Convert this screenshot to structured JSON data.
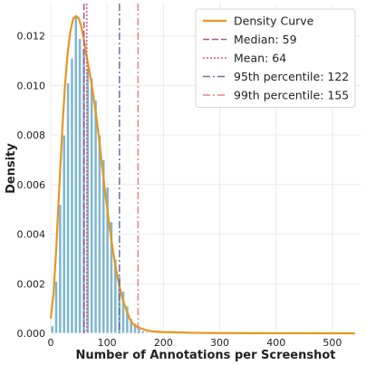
{
  "chart_data": {
    "type": "bar",
    "title": "",
    "xlabel": "Number of Annotations per Screenshot",
    "ylabel": "Density",
    "xlim": [
      0,
      550
    ],
    "ylim": [
      0,
      0.0133
    ],
    "x_ticks": [
      0,
      100,
      200,
      300,
      400,
      500
    ],
    "y_ticks": [
      0.0,
      0.002,
      0.004,
      0.006,
      0.008,
      0.01,
      0.012
    ],
    "y_tick_labels": [
      "0.000",
      "0.002",
      "0.004",
      "0.006",
      "0.008",
      "0.010",
      "0.012"
    ],
    "grid": true,
    "legend_position": "top-right",
    "histogram": {
      "name": "",
      "color": "#7fb7d1",
      "bin_width": 7,
      "bins": [
        {
          "x0": 0,
          "value": 0.0003
        },
        {
          "x0": 7,
          "value": 0.0021
        },
        {
          "x0": 14,
          "value": 0.0052
        },
        {
          "x0": 21,
          "value": 0.008
        },
        {
          "x0": 28,
          "value": 0.0101
        },
        {
          "x0": 35,
          "value": 0.0111
        },
        {
          "x0": 42,
          "value": 0.0128
        },
        {
          "x0": 49,
          "value": 0.0119
        },
        {
          "x0": 56,
          "value": 0.0115
        },
        {
          "x0": 63,
          "value": 0.0107
        },
        {
          "x0": 70,
          "value": 0.0103
        },
        {
          "x0": 77,
          "value": 0.0094
        },
        {
          "x0": 84,
          "value": 0.008
        },
        {
          "x0": 91,
          "value": 0.007
        },
        {
          "x0": 98,
          "value": 0.0059
        },
        {
          "x0": 105,
          "value": 0.0045
        },
        {
          "x0": 112,
          "value": 0.003
        },
        {
          "x0": 119,
          "value": 0.0023
        },
        {
          "x0": 126,
          "value": 0.0017
        },
        {
          "x0": 133,
          "value": 0.0011
        },
        {
          "x0": 140,
          "value": 0.0006
        },
        {
          "x0": 147,
          "value": 0.0004
        },
        {
          "x0": 154,
          "value": 0.0002
        },
        {
          "x0": 161,
          "value": 0.0001
        },
        {
          "x0": 168,
          "value": 6e-05
        },
        {
          "x0": 175,
          "value": 4e-05
        }
      ]
    },
    "series": [
      {
        "name": "Density Curve",
        "type": "line",
        "color": "#e8961e",
        "x": [
          0,
          5,
          10,
          15,
          20,
          25,
          30,
          35,
          40,
          45,
          50,
          55,
          60,
          65,
          70,
          75,
          80,
          85,
          90,
          95,
          100,
          105,
          110,
          115,
          120,
          125,
          130,
          135,
          140,
          145,
          150,
          155,
          160,
          170,
          180,
          200,
          220,
          250,
          300,
          350,
          400,
          450,
          500,
          540
        ],
        "y": [
          0.0006,
          0.0016,
          0.0035,
          0.0058,
          0.008,
          0.0099,
          0.0113,
          0.0122,
          0.0127,
          0.0128,
          0.0127,
          0.0123,
          0.0117,
          0.011,
          0.0104,
          0.0097,
          0.0089,
          0.008,
          0.007,
          0.006,
          0.0051,
          0.0042,
          0.0034,
          0.0027,
          0.0021,
          0.0016,
          0.0012,
          0.0009,
          0.0006,
          0.0004,
          0.0003,
          0.00025,
          0.0002,
          0.00012,
          8e-05,
          5e-05,
          4e-05,
          2e-05,
          1e-05,
          5e-06,
          3e-06,
          2e-06,
          1e-06,
          1e-06
        ]
      }
    ],
    "reference_lines": [
      {
        "name": "Median: 59",
        "x": 59,
        "color": "#b0578d",
        "dash": "7,3"
      },
      {
        "name": "Mean: 64",
        "x": 64,
        "color": "#e0557a",
        "dash": "2,2"
      },
      {
        "name": "95th percentile: 122",
        "x": 122,
        "color": "#6e6da6",
        "dash": "8,3,2,3"
      },
      {
        "name": "99th percentile: 155",
        "x": 155,
        "color": "#f07f82",
        "dash": "8,3,2,3"
      }
    ]
  }
}
